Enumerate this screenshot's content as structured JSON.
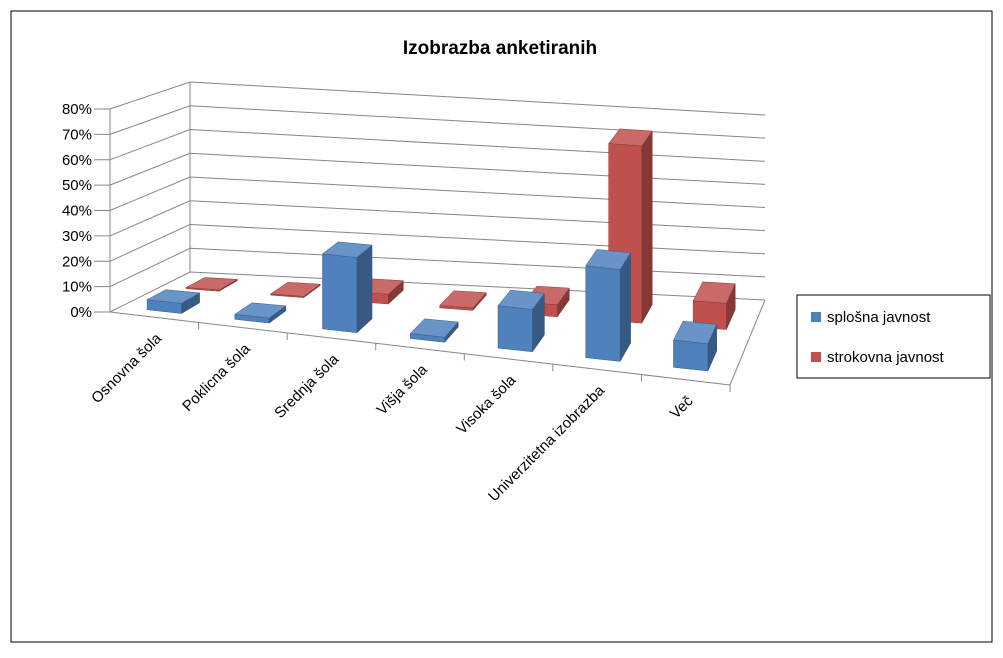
{
  "chart_data": {
    "type": "bar3d",
    "title": "Izobrazba anketiranih",
    "categories": [
      "Osnovna šola",
      "Poklicna šola",
      "Srednja šola",
      "Višja šola",
      "Visoka šola",
      "Univerzitetna izobrazba",
      "Več"
    ],
    "series": [
      {
        "name": "splošna javnost",
        "color": "#4f81bd",
        "values": [
          4,
          2,
          30,
          2,
          17,
          37,
          11
        ]
      },
      {
        "name": "strokovna javnost",
        "color": "#c0504d",
        "values": [
          0.5,
          0.5,
          4,
          1,
          5,
          74,
          11
        ]
      }
    ],
    "ylim": [
      0,
      80
    ],
    "yticks": [
      {
        "value": 0,
        "label": "0%"
      },
      {
        "value": 10,
        "label": "10%"
      },
      {
        "value": 20,
        "label": "20%"
      },
      {
        "value": 30,
        "label": "30%"
      },
      {
        "value": 40,
        "label": "40%"
      },
      {
        "value": 50,
        "label": "50%"
      },
      {
        "value": 60,
        "label": "60%"
      },
      {
        "value": 70,
        "label": "70%"
      },
      {
        "value": 80,
        "label": "80%"
      }
    ],
    "grid": true,
    "legend": "right"
  }
}
